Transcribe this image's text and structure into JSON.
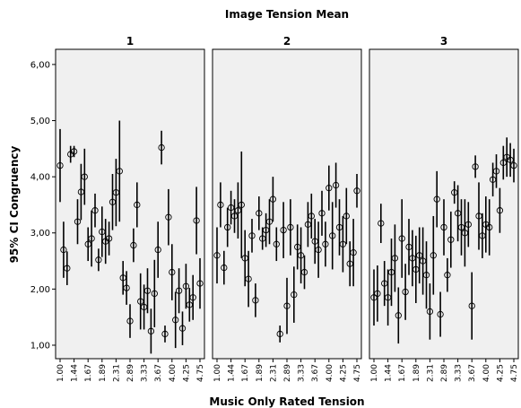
{
  "chart_data": {
    "type": "errorbar",
    "title": "Image Tension Mean",
    "x_label": "Music Only Rated Tension",
    "y_label": "95% CI Congruency",
    "categories": [
      "1.00",
      null,
      null,
      null,
      "1.44",
      null,
      null,
      null,
      "1.67",
      null,
      null,
      null,
      "1.89",
      null,
      null,
      null,
      "2.31",
      null,
      null,
      null,
      "2.89",
      null,
      null,
      null,
      "3.33",
      null,
      null,
      null,
      "3.67",
      null,
      null,
      null,
      "4.00",
      null,
      null,
      null,
      "4.25",
      null,
      null,
      null,
      "4.75"
    ],
    "ylim": [
      0.76,
      6.27
    ],
    "yticks": [
      {
        "value": 1,
        "label": "1,00"
      },
      {
        "value": 2,
        "label": "2,00"
      },
      {
        "value": 3,
        "label": "3,00"
      },
      {
        "value": 4,
        "label": "4,00"
      },
      {
        "value": 5,
        "label": "5,00"
      },
      {
        "value": 6,
        "label": "6,00"
      }
    ],
    "color": "#000000",
    "panels": [
      {
        "name": "1",
        "values": [
          4.2,
          2.7,
          2.37,
          4.4,
          4.45,
          3.2,
          3.73,
          4.0,
          2.8,
          2.9,
          3.4,
          2.52,
          3.02,
          2.85,
          2.9,
          3.55,
          3.72,
          4.1,
          2.2,
          2.02,
          1.43,
          2.78,
          3.5,
          1.78,
          1.68,
          1.97,
          1.25,
          1.92,
          2.7,
          4.52,
          1.2,
          3.28,
          2.3,
          1.45,
          1.97,
          1.3,
          2.05,
          1.72,
          1.85,
          3.22,
          2.1
        ],
        "errors": [
          0.65,
          0.5,
          0.3,
          0.15,
          0.1,
          0.4,
          0.5,
          0.5,
          0.3,
          0.5,
          0.3,
          0.2,
          0.45,
          0.4,
          0.3,
          0.5,
          0.6,
          0.9,
          0.3,
          0.3,
          0.3,
          0.3,
          0.4,
          0.5,
          0.4,
          0.4,
          0.4,
          0.6,
          0.5,
          0.3,
          0.15,
          0.5,
          0.5,
          0.5,
          0.4,
          0.3,
          0.4,
          0.3,
          0.4,
          0.6,
          0.45
        ]
      },
      {
        "name": "2",
        "values": [
          2.6,
          3.5,
          2.38,
          3.1,
          3.45,
          3.3,
          3.4,
          3.5,
          2.55,
          2.18,
          2.95,
          1.8,
          3.35,
          2.9,
          3.05,
          3.2,
          3.6,
          2.8,
          1.2,
          3.05,
          1.7,
          3.1,
          1.9,
          2.75,
          2.6,
          2.3,
          3.15,
          3.3,
          2.85,
          2.7,
          3.35,
          2.8,
          3.8,
          2.95,
          3.85,
          3.1,
          2.8,
          3.3,
          2.45,
          2.65,
          3.75
        ],
        "errors": [
          0.5,
          0.4,
          0.3,
          0.35,
          0.3,
          0.3,
          0.5,
          0.95,
          0.5,
          0.5,
          0.3,
          0.3,
          0.3,
          0.2,
          0.3,
          0.4,
          0.4,
          0.3,
          0.15,
          0.5,
          0.5,
          0.5,
          0.5,
          0.4,
          0.5,
          0.3,
          0.4,
          0.4,
          0.4,
          0.5,
          0.4,
          0.4,
          0.4,
          0.6,
          0.4,
          0.5,
          0.5,
          0.5,
          0.4,
          0.6,
          0.3
        ]
      },
      {
        "name": "3",
        "values": [
          1.85,
          1.92,
          3.17,
          2.1,
          1.85,
          2.3,
          2.55,
          1.53,
          2.9,
          1.95,
          2.75,
          2.55,
          2.35,
          2.6,
          2.5,
          2.25,
          1.6,
          2.6,
          3.6,
          1.55,
          3.1,
          2.25,
          2.88,
          3.72,
          3.35,
          3.1,
          3.0,
          3.15,
          1.7,
          4.18,
          3.3,
          2.95,
          3.15,
          3.1,
          3.95,
          4.1,
          3.4,
          4.25,
          4.35,
          4.3,
          4.2
        ],
        "errors": [
          0.5,
          0.5,
          0.35,
          0.4,
          0.5,
          0.6,
          0.6,
          0.5,
          0.7,
          0.5,
          0.5,
          0.5,
          0.6,
          0.5,
          0.6,
          0.6,
          0.5,
          0.7,
          0.5,
          0.4,
          0.5,
          0.3,
          0.5,
          0.2,
          0.5,
          0.5,
          0.6,
          0.4,
          0.6,
          0.2,
          0.6,
          0.4,
          0.5,
          0.5,
          0.3,
          0.3,
          0.4,
          0.3,
          0.35,
          0.3,
          0.3
        ]
      }
    ]
  }
}
